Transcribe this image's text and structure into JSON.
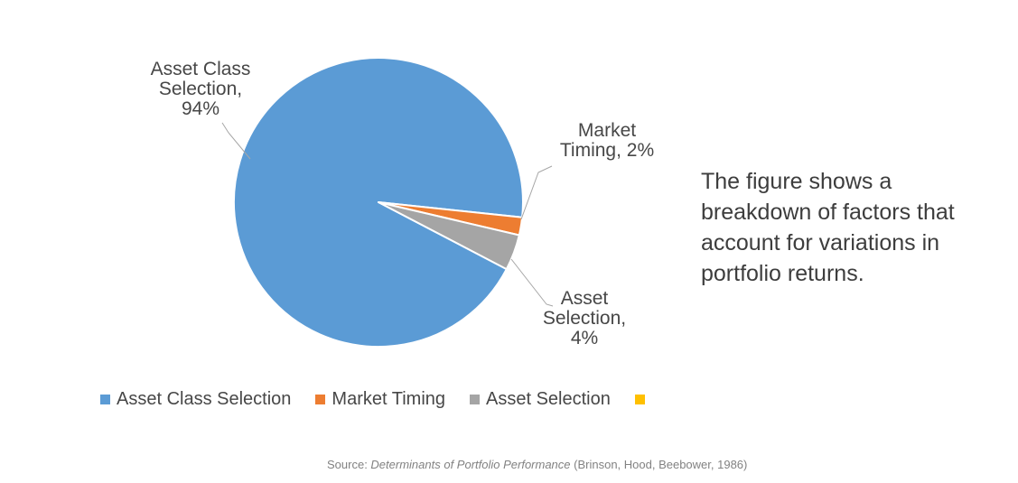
{
  "page": {
    "background": "#ffffff"
  },
  "chart_data": {
    "type": "pie",
    "title": "",
    "slices": [
      {
        "label": "Asset Class Selection",
        "value": 94,
        "color": "#5B9BD5",
        "data_label": "Asset Class Selection, 94%"
      },
      {
        "label": "Market Timing",
        "value": 2,
        "color": "#ED7D31",
        "data_label": "Market Timing, 2%"
      },
      {
        "label": "Asset Selection",
        "value": 4,
        "color": "#A5A5A5",
        "data_label": "Asset Selection, 4%"
      },
      {
        "label": "",
        "value": 0,
        "color": "#FFC000",
        "data_label": ""
      }
    ],
    "first_slice_angle_deg": 117.6,
    "legend_position": "bottom",
    "data_label_format": "category name, percentage",
    "leader_line_color": "#a6a6a6"
  },
  "annotation": {
    "text": "The figure shows a breakdown of factors that account for variations in portfolio returns."
  },
  "source_note": {
    "prefix": "Source: ",
    "work_title": "Determinants of Portfolio Performance",
    "suffix": " (Brinson, Hood, Beebower, 1986)"
  }
}
